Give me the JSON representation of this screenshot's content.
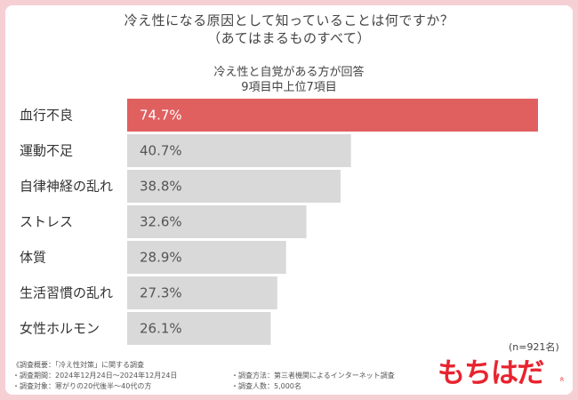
{
  "title_line1": "冷え性になる原因として知っていることは何ですか？",
  "title_line2": "（あてはまるものすべて）",
  "subtitle_line1": "冷え性と自覚がある方が回答",
  "subtitle_line2": "9項目中上位7項目",
  "sample_size": "(n=921名)",
  "colors": {
    "highlight": "#e06060",
    "bar": "#d9d9d9",
    "background": "#f6cfd4",
    "brand": "#e8232f"
  },
  "chart_data": {
    "type": "bar",
    "orientation": "horizontal",
    "categories": [
      "血行不良",
      "運動不足",
      "自律神経の乱れ",
      "ストレス",
      "体質",
      "生活習慣の乱れ",
      "女性ホルモン"
    ],
    "values": [
      74.7,
      40.7,
      38.8,
      32.6,
      28.9,
      27.3,
      26.1
    ],
    "value_labels": [
      "74.7%",
      "40.7%",
      "38.8%",
      "32.6%",
      "28.9%",
      "27.3%",
      "26.1%"
    ],
    "unit": "%",
    "xlim": [
      0,
      74.7
    ]
  },
  "footnotes": {
    "survey_name": "《調査概要：「冷え性対策」に関する調査",
    "period": "・調査期間：2024年12月24日～2024年12月24日",
    "target": "・調査対象：寒がりの20代後半～40代の方",
    "method": "・調査方法：第三者機関によるインターネット調査",
    "count": "・調査人数：5,000名"
  },
  "brand": {
    "name": "もちはだ",
    "mark": "R"
  }
}
